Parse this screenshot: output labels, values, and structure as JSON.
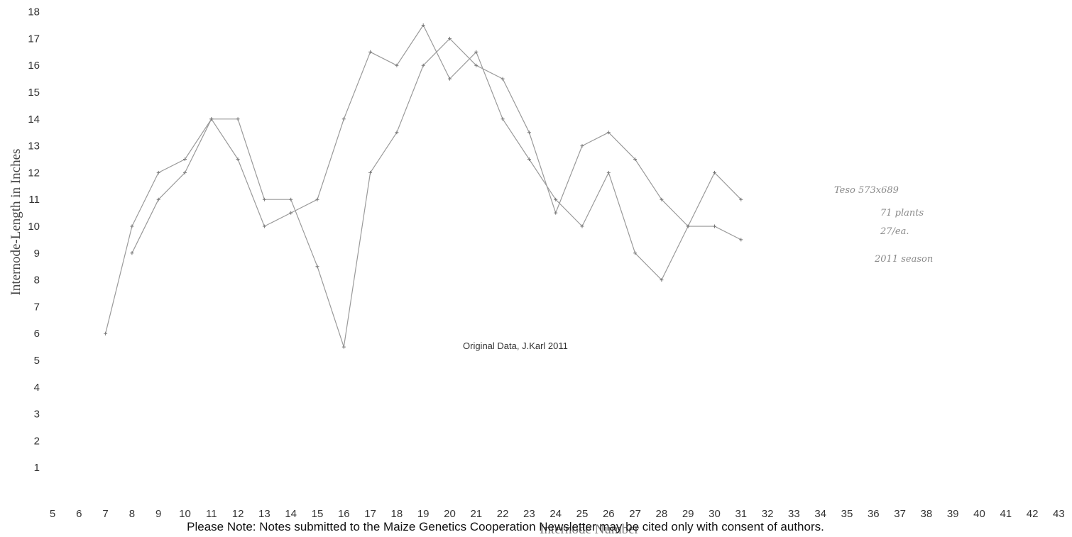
{
  "chart_data": {
    "type": "line",
    "title": "",
    "xlabel": "Internode Number",
    "ylabel": "Internode-Length in Inches",
    "xlim": [
      5,
      43
    ],
    "ylim": [
      0,
      18
    ],
    "x_ticks": [
      5,
      6,
      7,
      8,
      9,
      10,
      11,
      12,
      13,
      14,
      15,
      16,
      17,
      18,
      19,
      20,
      21,
      22,
      23,
      24,
      25,
      26,
      27,
      28,
      29,
      30,
      31,
      32,
      33,
      34,
      35,
      36,
      37,
      38,
      39,
      40,
      41,
      42,
      43
    ],
    "y_ticks": [
      1,
      2,
      3,
      4,
      5,
      6,
      7,
      8,
      9,
      10,
      11,
      12,
      13,
      14,
      15,
      16,
      17,
      18
    ],
    "grid": false,
    "annotation": "Original Data, J.Karl 2011",
    "handwritten_note": [
      "Teso 573x689",
      "71 plants",
      "27/ea.",
      "2011 season"
    ],
    "series": [
      {
        "x": [
          7,
          8,
          9,
          10,
          11,
          12,
          13,
          14,
          15,
          16,
          17,
          18,
          19,
          20,
          21,
          22,
          23,
          24,
          25,
          26,
          27,
          28,
          29,
          30,
          31
        ],
        "y": [
          6,
          10,
          12,
          12.5,
          14,
          14,
          11,
          11,
          8.5,
          5.5,
          12,
          13.5,
          16,
          17,
          16,
          15.5,
          13.5,
          10.5,
          13,
          13.5,
          12.5,
          11,
          10,
          10,
          9.5
        ]
      },
      {
        "x": [
          8,
          9,
          10,
          11,
          12,
          13,
          14,
          15,
          16,
          17,
          18,
          19,
          20,
          21,
          22,
          23,
          24,
          25,
          26,
          27,
          28,
          29,
          30,
          31
        ],
        "y": [
          9,
          11,
          12,
          14,
          12.5,
          10,
          10.5,
          11,
          14,
          16.5,
          16,
          17.5,
          15.5,
          16.5,
          14,
          12.5,
          11,
          10,
          12,
          9,
          8,
          10,
          12,
          11
        ]
      }
    ]
  },
  "footer_note": "Please Note: Notes submitted to the Maize Genetics Cooperation Newsletter may be cited only with consent of authors."
}
